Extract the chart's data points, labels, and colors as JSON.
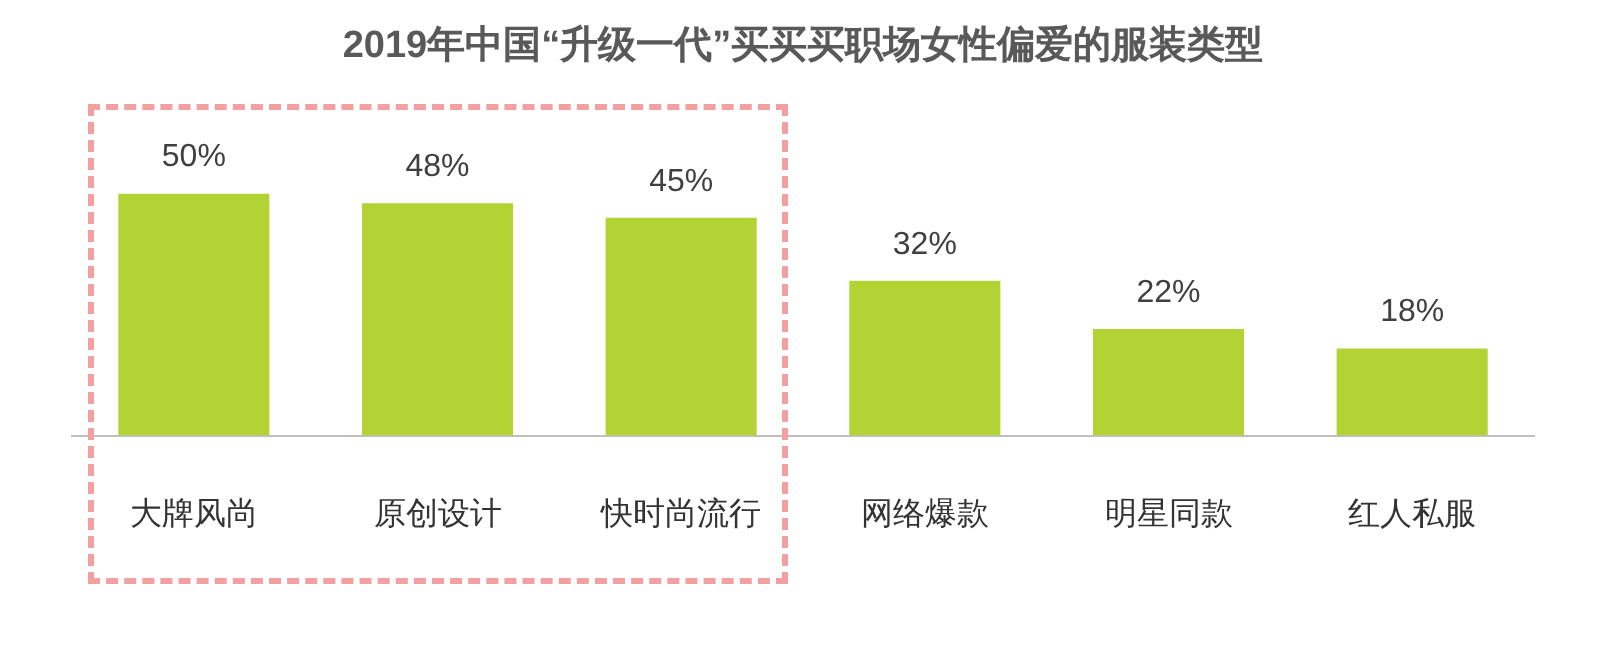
{
  "chart_data": {
    "type": "bar",
    "title": "2019年中国“升级一代”买买买职场女性偏爱的服装类型",
    "categories": [
      "大牌风尚",
      "原创设计",
      "快时尚流行",
      "网络爆款",
      "明星同款",
      "红人私服"
    ],
    "values": [
      50,
      48,
      45,
      32,
      22,
      18
    ],
    "value_labels": [
      "50%",
      "48%",
      "45%",
      "32%",
      "22%",
      "18%"
    ],
    "color": "#b3d335",
    "grid": false,
    "legend": false
  }
}
